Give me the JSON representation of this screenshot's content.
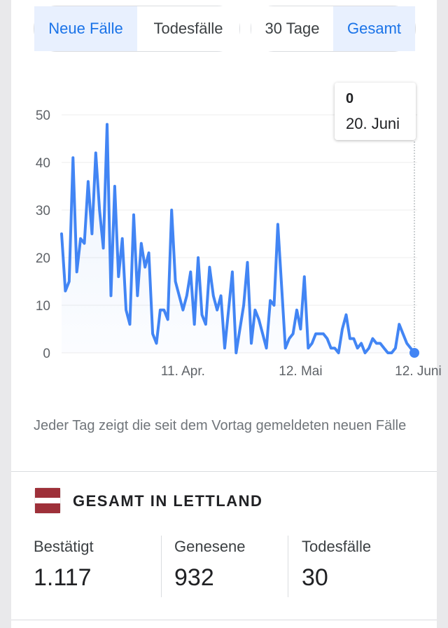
{
  "metric_toggle": {
    "new_cases": "Neue Fälle",
    "deaths": "Todesfälle",
    "active": "new_cases"
  },
  "range_toggle": {
    "days30": "30 Tage",
    "total": "Gesamt",
    "active": "total"
  },
  "colors": {
    "line": "#4285f4",
    "accent": "#1a73e8",
    "flag_red": "#9e3039"
  },
  "tooltip": {
    "value": "0",
    "date": "20. Juni"
  },
  "chart_data": {
    "type": "line",
    "title": "",
    "xlabel": "",
    "ylabel": "",
    "ylim": [
      0,
      50
    ],
    "yticks": [
      0,
      10,
      20,
      30,
      40,
      50
    ],
    "x_start": "2020-03-10",
    "x_tick_labels": [
      {
        "date": "2020-04-11",
        "label": "11. Apr."
      },
      {
        "date": "2020-05-12",
        "label": "12. Mai"
      },
      {
        "date": "2020-06-12",
        "label": "12. Juni"
      }
    ],
    "grid": true,
    "series": [
      {
        "values": [
          25,
          13,
          15,
          41,
          17,
          24,
          23,
          36,
          25,
          42,
          30,
          22,
          48,
          12,
          35,
          16,
          24,
          9,
          6,
          29,
          12,
          23,
          18,
          21,
          4,
          2,
          9,
          9,
          7,
          30,
          15,
          12,
          9,
          12,
          17,
          6,
          20,
          8,
          6,
          18,
          12,
          9,
          12,
          1,
          9,
          17,
          0,
          5,
          10,
          19,
          2,
          9,
          7,
          4,
          1,
          11,
          10,
          27,
          14,
          1,
          3,
          4,
          9,
          5,
          16,
          1,
          2,
          4,
          4,
          4,
          3,
          1,
          1,
          0,
          5,
          8,
          3,
          3,
          1,
          2,
          0,
          1,
          3,
          2,
          2,
          1,
          0,
          0,
          1,
          6,
          4,
          2,
          1,
          0
        ]
      }
    ],
    "highlight_last_point": true
  },
  "caption": "Jeder Tag zeigt die seit dem Vortag gemeldeten neuen Fälle",
  "section_title": "GESAMT IN LETTLAND",
  "stats": {
    "confirmed": {
      "label": "Bestätigt",
      "value": "1.117"
    },
    "recovered": {
      "label": "Genesene",
      "value": "932"
    },
    "deaths": {
      "label": "Todesfälle",
      "value": "30"
    }
  }
}
